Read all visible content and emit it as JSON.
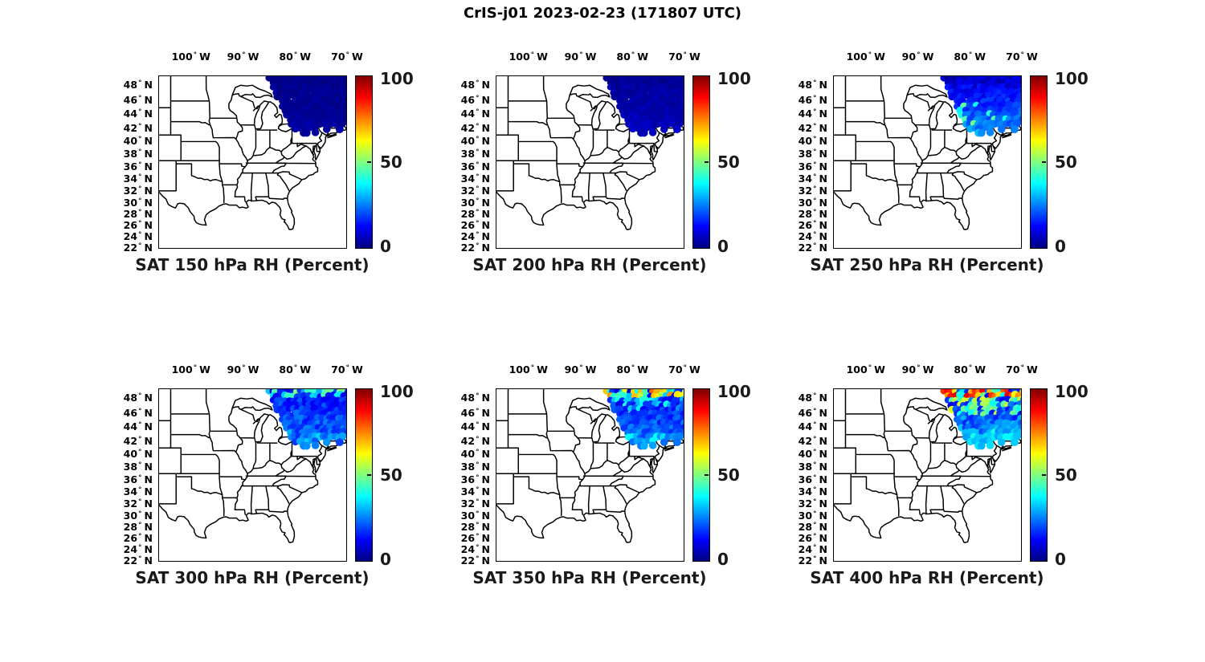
{
  "figure_title": "CrIS-j01 2023-02-23 (171807 UTC)",
  "axes": {
    "degree_symbol": "°",
    "lon_ticks": [
      {
        "value": "100",
        "dir": "W"
      },
      {
        "value": "90",
        "dir": "W"
      },
      {
        "value": "80",
        "dir": "W"
      },
      {
        "value": "70",
        "dir": "W"
      }
    ],
    "lat_ticks": [
      {
        "value": "48",
        "dir": "N"
      },
      {
        "value": "46",
        "dir": "N"
      },
      {
        "value": "44",
        "dir": "N"
      },
      {
        "value": "42",
        "dir": "N"
      },
      {
        "value": "40",
        "dir": "N"
      },
      {
        "value": "38",
        "dir": "N"
      },
      {
        "value": "36",
        "dir": "N"
      },
      {
        "value": "34",
        "dir": "N"
      },
      {
        "value": "32",
        "dir": "N"
      },
      {
        "value": "30",
        "dir": "N"
      },
      {
        "value": "28",
        "dir": "N"
      },
      {
        "value": "26",
        "dir": "N"
      },
      {
        "value": "24",
        "dir": "N"
      },
      {
        "value": "22",
        "dir": "N"
      }
    ]
  },
  "colorbar": {
    "tick_labels": [
      "100",
      "50",
      "0"
    ],
    "range": [
      0,
      100
    ],
    "colormap": "jet"
  },
  "chart_data": {
    "type": "scatter",
    "subtype": "map-swath-grid",
    "suptitle": "CrIS-j01 2023-02-23 (171807 UTC)",
    "satellite": "CrIS-j01",
    "date": "2023-02-23",
    "time_utc": "171807",
    "grid": {
      "rows": 2,
      "cols": 3
    },
    "map_extent": {
      "lon_deg_w": [
        106.3,
        70.0
      ],
      "lat_deg_n": [
        21.8,
        49.3
      ],
      "projection": "mercator",
      "basemap": "US state boundaries"
    },
    "lon_ticks_deg_w": [
      100,
      90,
      80,
      70
    ],
    "lat_ticks_deg_n": [
      48,
      46,
      44,
      42,
      40,
      38,
      36,
      34,
      32,
      30,
      28,
      26,
      24,
      22
    ],
    "colorbar": {
      "label": "RH (Percent)",
      "range": [
        0,
        100
      ],
      "ticks": [
        0,
        50,
        100
      ],
      "colormap": "jet"
    },
    "swath": {
      "description": "CrIS overpass footprint: scalloped trapezoid of overlapping field-of-view circles, clipped by map top/right edges",
      "lon_deg_w_at_top": [
        85.3,
        70.0
      ],
      "lat_deg_n_top": 49.3,
      "lat_deg_n_bottom": [
        41.9,
        43.0
      ]
    },
    "panels": [
      {
        "title": "SAT 150 hPa RH (Percent)",
        "pressure_hpa": 150,
        "summary": "RH ~0-5% across the entire swath (uniform dark navy blue)",
        "rh_profile": {
          "top_pct": 1,
          "bottom_pct": 3,
          "noise_pct": 1.5,
          "bands": []
        }
      },
      {
        "title": "SAT 200 hPa RH (Percent)",
        "pressure_hpa": 200,
        "summary": "RH ~0-8%, uniform dark blue with faint lighter patches",
        "rh_profile": {
          "top_pct": 2,
          "bottom_pct": 6,
          "noise_pct": 2,
          "bands": []
        }
      },
      {
        "title": "SAT 250 hPa RH (Percent)",
        "pressure_hpa": 250,
        "summary": "RH ~5-15% (blue) at north edge increasing to ~25-35% (cyan) toward the southern swath edge; isolated ~40-50% green speckles",
        "rh_profile": {
          "top_pct": 6,
          "bottom_pct": 28,
          "noise_pct": 5,
          "bands": [
            {
              "v_min": 0.15,
              "v_max": 0.34,
              "chance": 0.07,
              "rh_min": 36,
              "rh_max": 50
            }
          ]
        }
      },
      {
        "title": "SAT 300 hPa RH (Percent)",
        "pressure_hpa": 300,
        "summary": "Mostly 10-30% (blue); scattered 30-55% (cyan/green) footprints along the northernmost scan rows; slightly moister toward south edge",
        "rh_profile": {
          "top_pct": 14,
          "bottom_pct": 24,
          "noise_pct": 6,
          "bands": [
            {
              "v_min": 0.0,
              "v_max": 0.045,
              "chance": 0.62,
              "rh_min": 28,
              "rh_max": 52
            },
            {
              "v_min": 0.25,
              "v_max": 0.34,
              "chance": 0.4,
              "rh_min": 24,
              "rh_max": 34
            }
          ]
        }
      },
      {
        "title": "SAT 350 hPa RH (Percent)",
        "pressure_hpa": 350,
        "summary": "Northern scan rows mixed 30-80% (cyan/yellow/orange); interior 10-30% blue; ~25-40% cyan patches near the southern swath edge",
        "rh_profile": {
          "top_pct": 14,
          "bottom_pct": 24,
          "noise_pct": 6,
          "bands": [
            {
              "v_min": 0.0,
              "v_max": 0.05,
              "chance": 0.55,
              "rh_min": 30,
              "rh_max": 46
            },
            {
              "v_min": 0.0,
              "v_max": 0.05,
              "chance": 0.42,
              "rh_min": 52,
              "rh_max": 78
            },
            {
              "v_min": 0.05,
              "v_max": 0.115,
              "chance": 0.45,
              "rh_min": 26,
              "rh_max": 42
            },
            {
              "v_min": 0.26,
              "v_max": 0.34,
              "chance": 0.5,
              "rh_min": 26,
              "rh_max": 38
            }
          ]
        }
      },
      {
        "title": "SAT 400 hPa RH (Percent)",
        "pressure_hpa": 400,
        "summary": "Northernmost rows 60-95% (orange/red); 35-60% (green/yellow/cyan) band below; interior 10-35% blue with cyan patches toward south edge",
        "rh_profile": {
          "top_pct": 14,
          "bottom_pct": 30,
          "noise_pct": 8,
          "bands": [
            {
              "v_min": 0.0,
              "v_max": 0.05,
              "chance": 0.5,
              "rh_min": 34,
              "rh_max": 52
            },
            {
              "v_min": 0.0,
              "v_max": 0.05,
              "chance": 0.62,
              "rh_min": 62,
              "rh_max": 95
            },
            {
              "v_min": 0.05,
              "v_max": 0.15,
              "chance": 0.55,
              "rh_min": 36,
              "rh_max": 60
            },
            {
              "v_min": 0.25,
              "v_max": 0.34,
              "chance": 0.5,
              "rh_min": 28,
              "rh_max": 40
            }
          ]
        }
      }
    ]
  }
}
